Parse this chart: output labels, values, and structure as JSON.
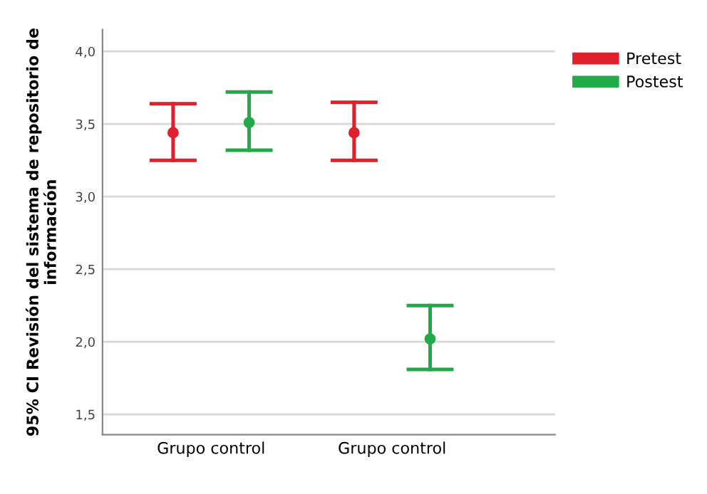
{
  "chart_data": {
    "type": "scatter",
    "categories": [
      "Grupo control",
      "Grupo control"
    ],
    "ylabel": "95% CI Revisión del sistema de repositorio de información",
    "series": [
      {
        "name": "Pretest",
        "color": "#e0202c",
        "values": [
          3.44,
          3.44
        ],
        "errors": [
          [
            3.25,
            3.64
          ],
          [
            3.25,
            3.65
          ]
        ]
      },
      {
        "name": "Postest",
        "color": "#22aa4a",
        "values": [
          3.51,
          2.02
        ],
        "errors": [
          [
            3.32,
            3.72
          ],
          [
            1.81,
            2.25
          ]
        ]
      }
    ],
    "ylim": [
      1.36,
      4.15
    ],
    "yticks": [
      {
        "value": 1.5,
        "label": "1,5"
      },
      {
        "value": 2.0,
        "label": "2,0"
      },
      {
        "value": 2.5,
        "label": "2,5"
      },
      {
        "value": 3.0,
        "label": "3,0"
      },
      {
        "value": 3.5,
        "label": "3,5"
      },
      {
        "value": 4.0,
        "label": "4,0"
      }
    ],
    "grid": "y",
    "legend": "top right",
    "marker": "circle"
  }
}
